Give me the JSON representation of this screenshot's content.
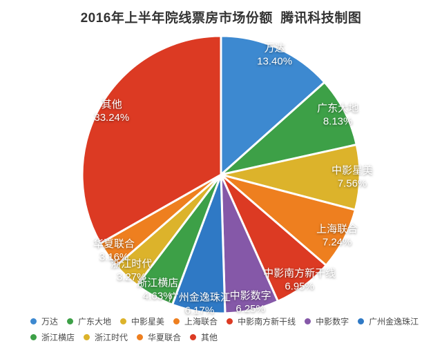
{
  "header": {
    "title": "2016年上半年院线票房市场份额  腾讯科技制图"
  },
  "chart_data": {
    "type": "pie",
    "title": "2016年上半年院线票房市场份额  腾讯科技制图",
    "unit": "%",
    "total": 100.0,
    "start_angle_deg": 0,
    "direction": "clockwise",
    "label_text_color": "#ffffff",
    "slice_border_color": "#ffffff",
    "legend_position": "bottom",
    "slices": [
      {
        "label": "万达",
        "value": 13.4,
        "pct_label": "13.40%",
        "color": "#3d89d0"
      },
      {
        "label": "广东大地",
        "value": 8.13,
        "pct_label": "8.13%",
        "color": "#3da047"
      },
      {
        "label": "中影星美",
        "value": 7.56,
        "pct_label": "7.56%",
        "color": "#dcb32b"
      },
      {
        "label": "上海联合",
        "value": 7.24,
        "pct_label": "7.24%",
        "color": "#ee7f1f"
      },
      {
        "label": "中影南方新干线",
        "value": 6.95,
        "pct_label": "6.95%",
        "color": "#dc3a23"
      },
      {
        "label": "中影数字",
        "value": 6.25,
        "pct_label": "6.25%",
        "color": "#8558a8"
      },
      {
        "label": "广州金逸珠江",
        "value": 6.17,
        "pct_label": "6.17%",
        "color": "#2f79c5"
      },
      {
        "label": "浙江横店",
        "value": 4.63,
        "pct_label": "4.63%",
        "color": "#3da047"
      },
      {
        "label": "浙江时代",
        "value": 3.27,
        "pct_label": "3.27%",
        "color": "#dcb32b"
      },
      {
        "label": "华夏联合",
        "value": 3.16,
        "pct_label": "3.16%",
        "color": "#ee7f1f"
      },
      {
        "label": "其他",
        "value": 33.24,
        "pct_label": "33.24%",
        "color": "#dc3a23"
      }
    ],
    "legend_rows": [
      [
        0,
        1,
        2,
        3,
        4,
        5,
        6
      ],
      [
        7,
        8,
        9,
        10
      ]
    ]
  }
}
